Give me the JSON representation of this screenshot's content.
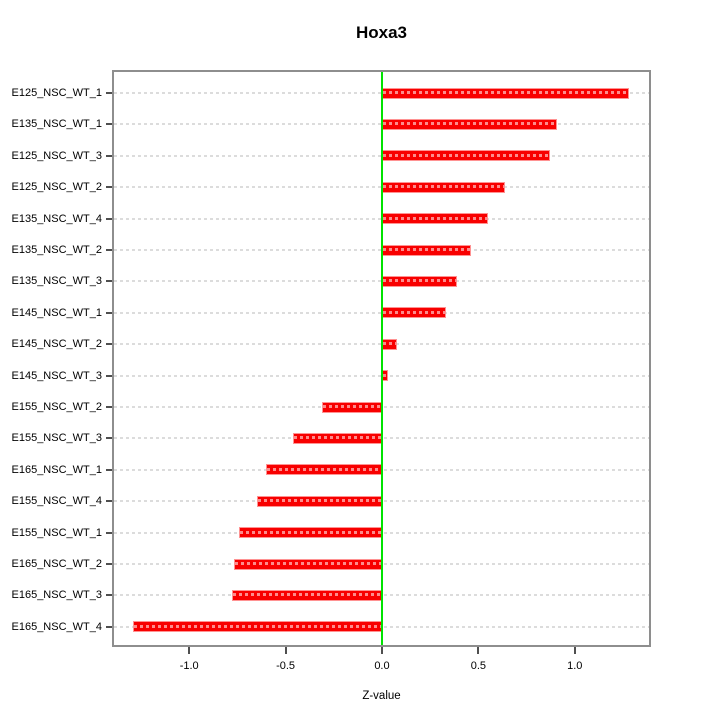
{
  "chart_data": {
    "type": "bar",
    "orientation": "horizontal",
    "title": "Hoxa3",
    "xlabel": "Z-value",
    "categories": [
      "E125_NSC_WT_1",
      "E135_NSC_WT_1",
      "E125_NSC_WT_3",
      "E125_NSC_WT_2",
      "E135_NSC_WT_4",
      "E135_NSC_WT_2",
      "E135_NSC_WT_3",
      "E145_NSC_WT_1",
      "E145_NSC_WT_2",
      "E145_NSC_WT_3",
      "E155_NSC_WT_2",
      "E155_NSC_WT_3",
      "E165_NSC_WT_1",
      "E155_NSC_WT_4",
      "E155_NSC_WT_1",
      "E165_NSC_WT_2",
      "E165_NSC_WT_3",
      "E165_NSC_WT_4"
    ],
    "values": [
      1.28,
      0.91,
      0.87,
      0.64,
      0.55,
      0.46,
      0.39,
      0.33,
      0.08,
      0.03,
      -0.31,
      -0.46,
      -0.6,
      -0.65,
      -0.74,
      -0.77,
      -0.78,
      -1.29
    ],
    "xlim": [
      -1.39,
      1.385
    ],
    "xticks": [
      {
        "value": -1.0,
        "label": "-1.0"
      },
      {
        "value": -0.5,
        "label": "-0.5"
      },
      {
        "value": 0.0,
        "label": "0.0"
      },
      {
        "value": 0.5,
        "label": "0.5"
      },
      {
        "value": 1.0,
        "label": "1.0"
      }
    ],
    "grid": {
      "style": "dotted",
      "lines": "horizontal-per-bar"
    },
    "legend": null,
    "zero_line_value": 0,
    "colors": {
      "bar": "#f80000",
      "bar_border": "#ff9292",
      "zero_line": "#00e300",
      "grid_line": "#dcdcdc",
      "box": "#8e8e8e",
      "tick": "#4f4f4f",
      "text": "#000000"
    }
  }
}
